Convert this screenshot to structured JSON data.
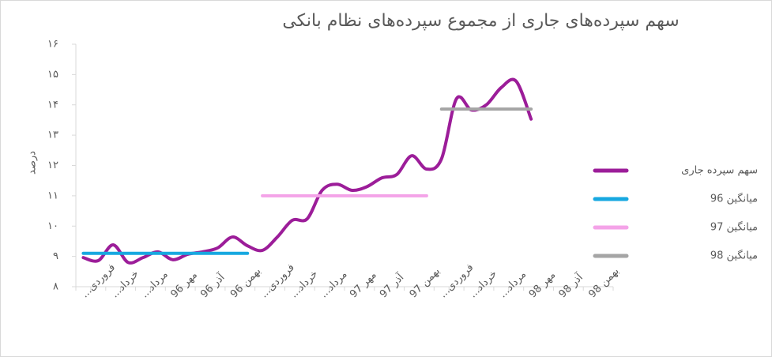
{
  "chart_data": {
    "type": "line",
    "title": "سهم سپرده‌های جاری از مجموع سپرده‌های نظام بانکی",
    "y_label": "درصد",
    "categories": [
      "فروردی...",
      null,
      "خرداد...",
      null,
      "مرداد...",
      null,
      "مهر 96",
      null,
      "آذر 96",
      null,
      "بهمن 96",
      null,
      "فروردی...",
      null,
      "خرداد...",
      null,
      "مرداد...",
      null,
      "مهر 97",
      null,
      "آذر 97",
      null,
      "بهمن 97",
      null,
      "فروردی...",
      null,
      "خرداد...",
      null,
      "مرداد...",
      null,
      "مهر 98",
      null,
      "آذر 98",
      null,
      "بهمن 98",
      null
    ],
    "series": [
      {
        "name": "سهم سپرده جاری",
        "color": "#9c1d99",
        "values": [
          8.96,
          8.86,
          9.38,
          8.8,
          8.96,
          9.15,
          8.89,
          9.07,
          9.15,
          9.28,
          9.64,
          9.35,
          9.2,
          9.64,
          10.19,
          10.24,
          11.18,
          11.38,
          11.18,
          11.3,
          11.59,
          11.7,
          12.32,
          11.88,
          12.22,
          14.2,
          13.83,
          14.0,
          14.57,
          14.78,
          13.53,
          null,
          null,
          null,
          null,
          null
        ]
      },
      {
        "name": "میانگین 96",
        "color": "#17a8e0",
        "values": [
          9.1,
          9.1,
          9.1,
          9.1,
          9.1,
          9.1,
          9.1,
          9.1,
          9.1,
          9.1,
          9.1,
          9.1,
          null,
          null,
          null,
          null,
          null,
          null,
          null,
          null,
          null,
          null,
          null,
          null,
          null,
          null,
          null,
          null,
          null,
          null,
          null,
          null,
          null,
          null,
          null,
          null
        ]
      },
      {
        "name": "میانگین 97",
        "color": "#f4a3e8",
        "values": [
          null,
          null,
          null,
          null,
          null,
          null,
          null,
          null,
          null,
          null,
          null,
          null,
          11.0,
          11.0,
          11.0,
          11.0,
          11.0,
          11.0,
          11.0,
          11.0,
          11.0,
          11.0,
          11.0,
          11.0,
          null,
          null,
          null,
          null,
          null,
          null,
          null,
          null,
          null,
          null,
          null,
          null
        ]
      },
      {
        "name": "میانگین 98",
        "color": "#a5a5a5",
        "values": [
          null,
          null,
          null,
          null,
          null,
          null,
          null,
          null,
          null,
          null,
          null,
          null,
          null,
          null,
          null,
          null,
          null,
          null,
          null,
          null,
          null,
          null,
          null,
          null,
          13.86,
          13.86,
          13.86,
          13.86,
          13.86,
          13.86,
          13.86,
          null,
          null,
          null,
          null,
          null
        ]
      }
    ],
    "ylim": [
      8,
      16
    ],
    "yticks": [
      {
        "value": 8,
        "label": "۸"
      },
      {
        "value": 9,
        "label": "۹"
      },
      {
        "value": 10,
        "label": "۱۰"
      },
      {
        "value": 11,
        "label": "۱۱"
      },
      {
        "value": 12,
        "label": "۱۲"
      },
      {
        "value": 13,
        "label": "۱۳"
      },
      {
        "value": 14,
        "label": "۱۴"
      },
      {
        "value": 15,
        "label": "۱۵"
      },
      {
        "value": 16,
        "label": "۱۶"
      }
    ],
    "grid": false,
    "legend": "right"
  }
}
